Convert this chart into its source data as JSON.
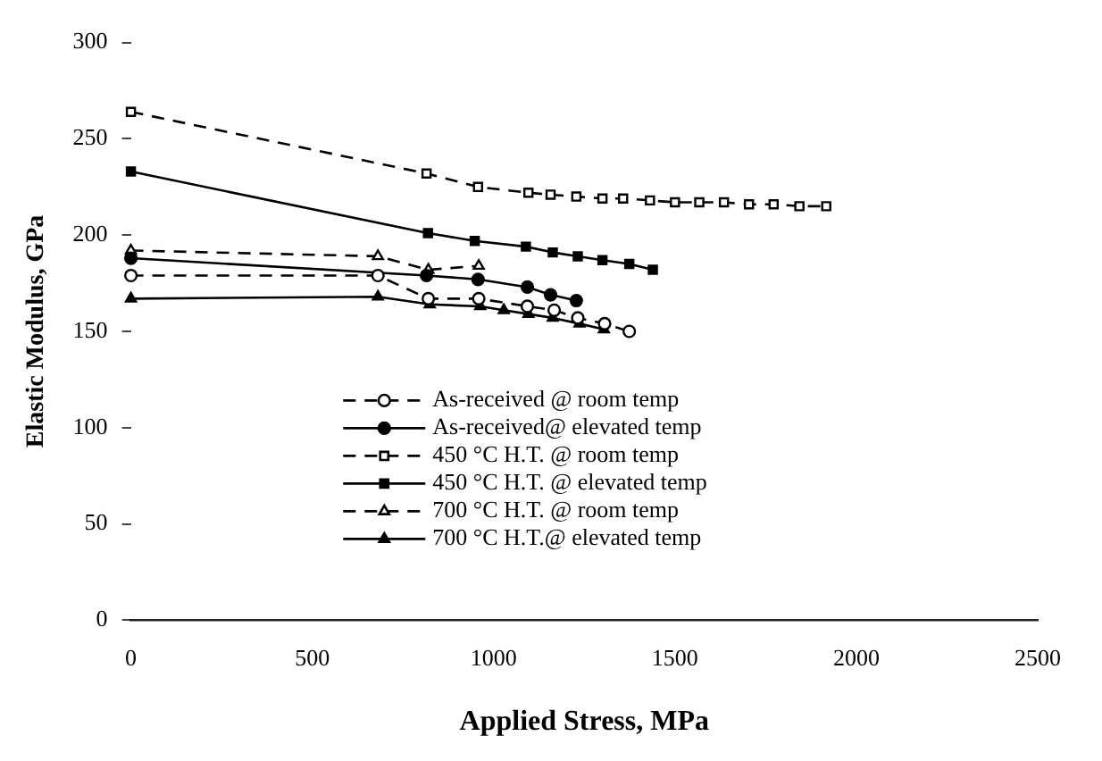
{
  "chart_data": {
    "type": "line",
    "xlabel": "Applied Stress, MPa",
    "ylabel": "Elastic Modulus, GPa",
    "xlim": [
      0,
      2500
    ],
    "xticks": [
      0,
      500,
      1000,
      1500,
      2000,
      2500
    ],
    "ylim": [
      0,
      300
    ],
    "yticks": [
      0,
      50,
      100,
      150,
      200,
      250,
      300
    ],
    "grid": false,
    "legend": "bottom",
    "series": [
      {
        "name": "As-received @ room temp",
        "color": "#000000",
        "marker": "circle",
        "line_style": "dashed",
        "x": [
          0,
          681,
          820,
          959,
          1093,
          1167,
          1232,
          1306,
          1374
        ],
        "values": [
          179,
          179,
          167,
          167,
          163,
          161,
          157,
          154,
          150
        ]
      },
      {
        "name": "As-received@ elevated temp",
        "color": "#000000",
        "marker": "circle",
        "line_style": "solid",
        "x": [
          0,
          815,
          957,
          1093,
          1157,
          1228
        ],
        "values": [
          188,
          179,
          177,
          173,
          169,
          166
        ]
      },
      {
        "name": "450 °C H.T. @ room temp",
        "color": "#000000",
        "marker": "square",
        "line_style": "dashed",
        "x": [
          0,
          815,
          957,
          1096,
          1157,
          1228,
          1300,
          1357,
          1431,
          1500,
          1567,
          1635,
          1704,
          1772,
          1843,
          1917
        ],
        "values": [
          264,
          232,
          225,
          222,
          221,
          220,
          219,
          219,
          218,
          217,
          217,
          217,
          216,
          216,
          215,
          215
        ]
      },
      {
        "name": "450 °C H.T. @ elevated temp",
        "color": "#000000",
        "marker": "square",
        "line_style": "solid",
        "x": [
          0,
          819,
          948,
          1089,
          1163,
          1232,
          1300,
          1374,
          1439
        ],
        "values": [
          233,
          201,
          197,
          194,
          191,
          189,
          187,
          185,
          182
        ]
      },
      {
        "name": "700 °C H.T. @ room temp",
        "color": "#000000",
        "marker": "triangle",
        "line_style": "dashed",
        "x": [
          0,
          681,
          820,
          959
        ],
        "values": [
          192,
          189,
          182,
          184
        ]
      },
      {
        "name": "700 °C H.T.@ elevated temp",
        "color": "#000000",
        "marker": "triangle",
        "line_style": "solid",
        "x": [
          0,
          681,
          824,
          963,
          1028,
          1096,
          1163,
          1237,
          1304
        ],
        "values": [
          167,
          168,
          164,
          163,
          161,
          159,
          157,
          154,
          151
        ]
      }
    ]
  }
}
